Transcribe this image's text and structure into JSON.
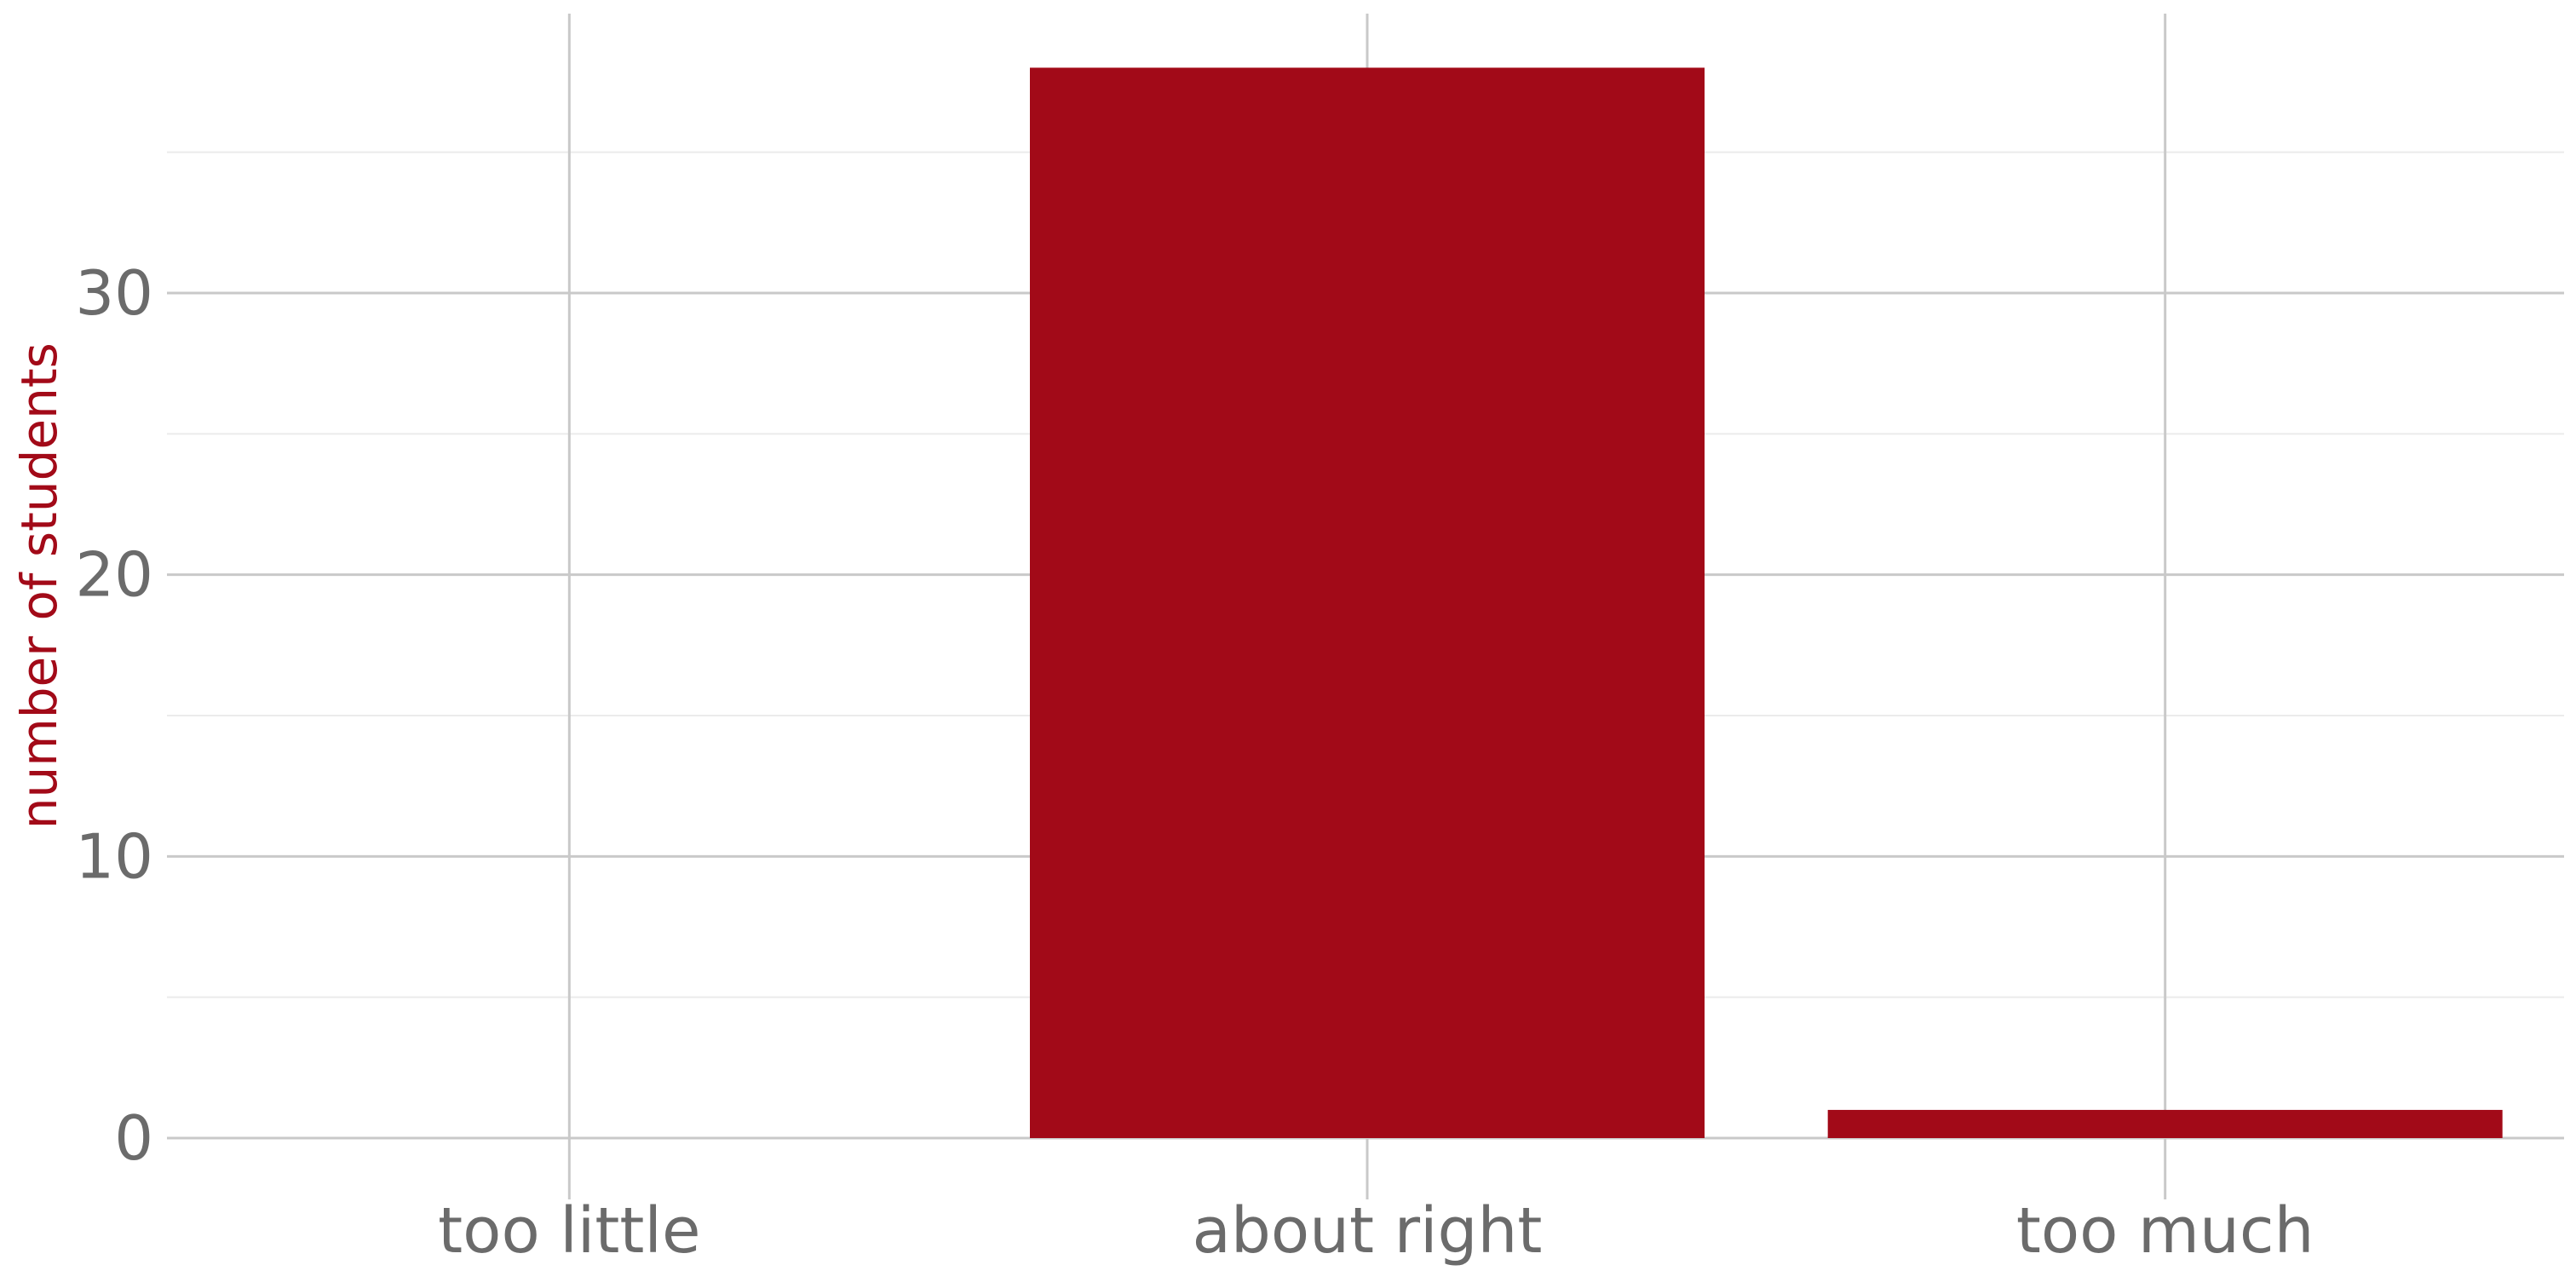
{
  "chart_data": {
    "type": "bar",
    "title": "",
    "xlabel": "",
    "ylabel": "number of students",
    "categories": [
      "too little",
      "about right",
      "too much"
    ],
    "values": [
      0,
      38,
      1
    ],
    "ylim": [
      0,
      40
    ],
    "y_major_ticks": [
      0,
      10,
      20,
      30
    ],
    "y_minor_ticks": [
      5,
      15,
      25,
      35
    ],
    "y_tick_labels": [
      "0",
      "10",
      "20",
      "30"
    ],
    "grid": true,
    "legend": "none",
    "colors": {
      "bar": "#a20a18",
      "ylabel": "#a20a18",
      "tick_text": "#6b6b6b",
      "grid_major": "#c9c9c9",
      "grid_minor": "#ebebeb"
    }
  }
}
